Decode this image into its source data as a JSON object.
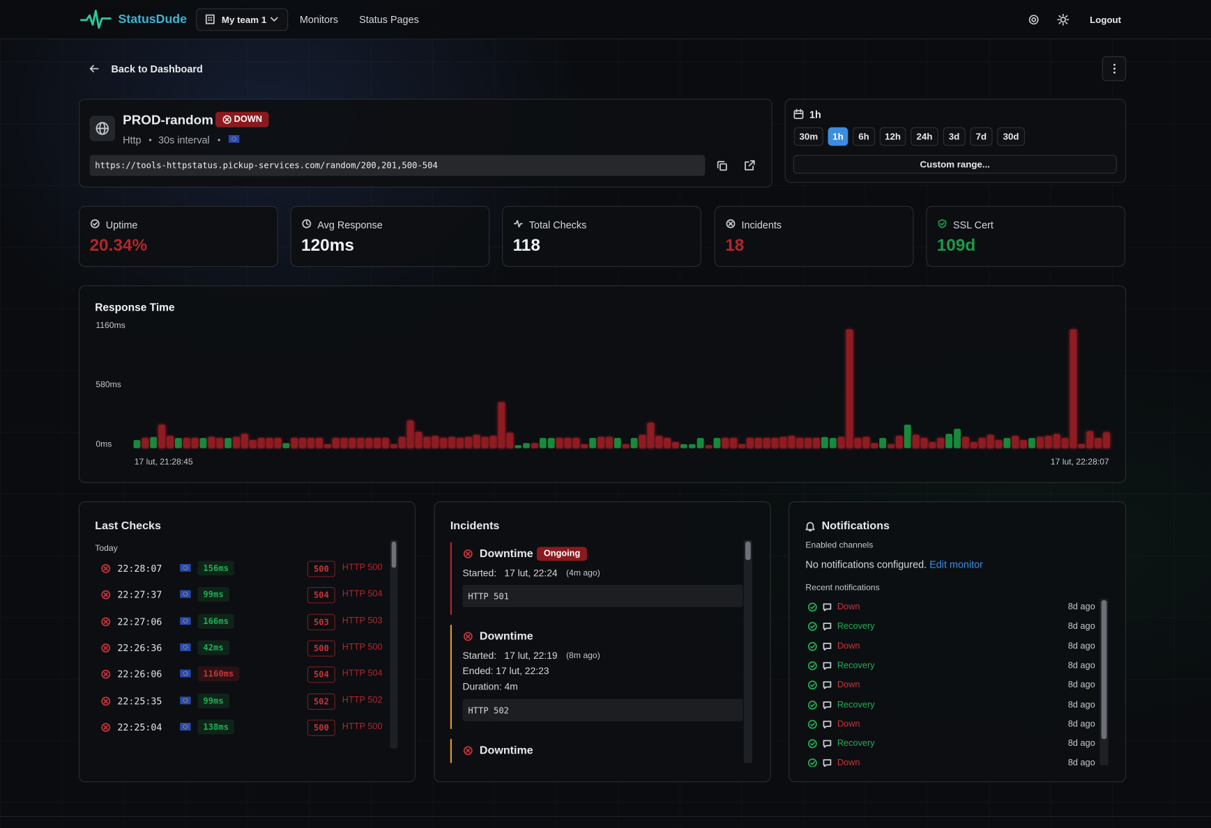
{
  "nav": {
    "brand": "StatusDude",
    "team": "My team 1",
    "links": [
      "Monitors",
      "Status Pages"
    ],
    "logout": "Logout"
  },
  "back": "Back to Dashboard",
  "monitor": {
    "name": "PROD-random",
    "status": "DOWN",
    "type": "Http",
    "interval": "30s interval",
    "url": "https://tools-httpstatus.pickup-services.com/random/200,201,500-504"
  },
  "range": {
    "current": "1h",
    "options": [
      "30m",
      "1h",
      "6h",
      "12h",
      "24h",
      "3d",
      "7d",
      "30d"
    ],
    "selected": 1,
    "custom": "Custom range..."
  },
  "stats": [
    {
      "label": "Uptime",
      "value": "20.34%",
      "color": "#b3262c"
    },
    {
      "label": "Avg Response",
      "value": "120ms",
      "color": "#f2f3f5"
    },
    {
      "label": "Total Checks",
      "value": "118",
      "color": "#f2f3f5"
    },
    {
      "label": "Incidents",
      "value": "18",
      "color": "#b3262c"
    },
    {
      "label": "SSL Cert",
      "value": "109d",
      "color": "#1e9a4a"
    }
  ],
  "chart_data": {
    "type": "bar",
    "title": "Response Time",
    "x_start": "17 lut, 21:28:45",
    "x_end": "17 lut, 22:28:07",
    "ylim": [
      0,
      1160
    ],
    "yticks": [
      {
        "value": 0,
        "label": "0ms"
      },
      {
        "value": 580,
        "label": "580ms"
      },
      {
        "value": 1160,
        "label": "1160ms"
      }
    ],
    "values": [
      80,
      100,
      110,
      230,
      120,
      100,
      100,
      100,
      100,
      110,
      100,
      100,
      110,
      140,
      80,
      100,
      100,
      100,
      50,
      100,
      100,
      100,
      100,
      40,
      100,
      100,
      100,
      100,
      100,
      100,
      100,
      40,
      110,
      270,
      160,
      110,
      120,
      100,
      110,
      100,
      110,
      130,
      110,
      120,
      450,
      150,
      30,
      50,
      50,
      100,
      100,
      100,
      100,
      100,
      40,
      100,
      110,
      110,
      100,
      40,
      100,
      130,
      250,
      120,
      100,
      60,
      40,
      40,
      100,
      30,
      100,
      100,
      100,
      40,
      100,
      100,
      100,
      100,
      110,
      120,
      100,
      100,
      100,
      110,
      100,
      110,
      1160,
      100,
      110,
      50,
      100,
      40,
      120,
      230,
      130,
      100,
      60,
      100,
      140,
      190,
      110,
      60,
      100,
      130,
      80,
      100,
      120,
      80,
      100,
      110,
      120,
      138,
      99,
      1160,
      42,
      166,
      99,
      156
    ],
    "colors": [
      "#178a3c",
      "#8e1a20",
      "#178a3c",
      "#8e1a20",
      "#8e1a20",
      "#178a3c",
      "#8e1a20",
      "#8e1a20",
      "#178a3c",
      "#8e1a20",
      "#8e1a20",
      "#178a3c",
      "#8e1a20",
      "#8e1a20",
      "#8e1a20",
      "#8e1a20",
      "#8e1a20",
      "#8e1a20",
      "#178a3c",
      "#8e1a20",
      "#8e1a20",
      "#8e1a20",
      "#8e1a20",
      "#8e1a20",
      "#8e1a20",
      "#8e1a20",
      "#8e1a20",
      "#8e1a20",
      "#8e1a20",
      "#8e1a20",
      "#8e1a20",
      "#8e1a20",
      "#8e1a20",
      "#8e1a20",
      "#8e1a20",
      "#8e1a20",
      "#8e1a20",
      "#8e1a20",
      "#8e1a20",
      "#8e1a20",
      "#8e1a20",
      "#8e1a20",
      "#8e1a20",
      "#8e1a20",
      "#8e1a20",
      "#8e1a20",
      "#178a3c",
      "#178a3c",
      "#8e1a20",
      "#178a3c",
      "#178a3c",
      "#8e1a20",
      "#8e1a20",
      "#8e1a20",
      "#8e1a20",
      "#178a3c",
      "#8e1a20",
      "#8e1a20",
      "#178a3c",
      "#8e1a20",
      "#178a3c",
      "#8e1a20",
      "#8e1a20",
      "#8e1a20",
      "#8e1a20",
      "#8e1a20",
      "#178a3c",
      "#178a3c",
      "#178a3c",
      "#8e1a20",
      "#178a3c",
      "#8e1a20",
      "#8e1a20",
      "#8e1a20",
      "#8e1a20",
      "#8e1a20",
      "#8e1a20",
      "#8e1a20",
      "#8e1a20",
      "#8e1a20",
      "#8e1a20",
      "#8e1a20",
      "#8e1a20",
      "#178a3c",
      "#178a3c",
      "#8e1a20",
      "#8e1a20",
      "#8e1a20",
      "#8e1a20",
      "#8e1a20",
      "#178a3c",
      "#8e1a20",
      "#8e1a20",
      "#178a3c",
      "#8e1a20",
      "#8e1a20",
      "#8e1a20",
      "#8e1a20",
      "#178a3c",
      "#178a3c",
      "#8e1a20",
      "#8e1a20",
      "#8e1a20",
      "#8e1a20",
      "#8e1a20",
      "#178a3c",
      "#8e1a20",
      "#8e1a20",
      "#178a3c",
      "#8e1a20",
      "#8e1a20",
      "#8e1a20",
      "#8e1a20",
      "#8e1a20",
      "#8e1a20",
      "#8e1a20",
      "#8e1a20",
      "#8e1a20"
    ]
  },
  "last_checks": {
    "title": "Last Checks",
    "day": "Today",
    "rows": [
      {
        "time": "22:28:07",
        "response": "156ms",
        "response_color": "#1fae55",
        "code": "500",
        "message": "HTTP 500"
      },
      {
        "time": "22:27:37",
        "response": "99ms",
        "response_color": "#1fae55",
        "code": "504",
        "message": "HTTP 504"
      },
      {
        "time": "22:27:06",
        "response": "166ms",
        "response_color": "#1fae55",
        "code": "503",
        "message": "HTTP 503"
      },
      {
        "time": "22:26:36",
        "response": "42ms",
        "response_color": "#1fae55",
        "code": "500",
        "message": "HTTP 500"
      },
      {
        "time": "22:26:06",
        "response": "1160ms",
        "response_color": "#c8343a",
        "code": "504",
        "message": "HTTP 504"
      },
      {
        "time": "22:25:35",
        "response": "99ms",
        "response_color": "#1fae55",
        "code": "502",
        "message": "HTTP 502"
      },
      {
        "time": "22:25:04",
        "response": "138ms",
        "response_color": "#1fae55",
        "code": "500",
        "message": "HTTP 500"
      }
    ]
  },
  "incidents": {
    "title": "Incidents",
    "items": [
      {
        "title": "Downtime",
        "badge": "Ongoing",
        "started_label": "Started:",
        "started": "17 lut, 22:24",
        "ago": "(4m ago)",
        "error": "HTTP 501"
      },
      {
        "title": "Downtime",
        "started_label": "Started:",
        "started": "17 lut, 22:19",
        "ago": "(8m ago)",
        "ended": "Ended: 17 lut, 22:23",
        "duration": "Duration: 4m",
        "error": "HTTP 502"
      },
      {
        "title": "Downtime"
      }
    ]
  },
  "notifications": {
    "title": "Notifications",
    "enabled_label": "Enabled channels",
    "none": "No notifications configured.",
    "edit": "Edit monitor",
    "recent_label": "Recent notifications",
    "items": [
      {
        "event": "Down",
        "color": "#c8343a",
        "ago": "8d ago"
      },
      {
        "event": "Recovery",
        "color": "#1fae55",
        "ago": "8d ago"
      },
      {
        "event": "Down",
        "color": "#c8343a",
        "ago": "8d ago"
      },
      {
        "event": "Recovery",
        "color": "#1fae55",
        "ago": "8d ago"
      },
      {
        "event": "Down",
        "color": "#c8343a",
        "ago": "8d ago"
      },
      {
        "event": "Recovery",
        "color": "#1fae55",
        "ago": "8d ago"
      },
      {
        "event": "Down",
        "color": "#c8343a",
        "ago": "8d ago"
      },
      {
        "event": "Recovery",
        "color": "#1fae55",
        "ago": "8d ago"
      },
      {
        "event": "Down",
        "color": "#c8343a",
        "ago": "8d ago"
      }
    ]
  }
}
